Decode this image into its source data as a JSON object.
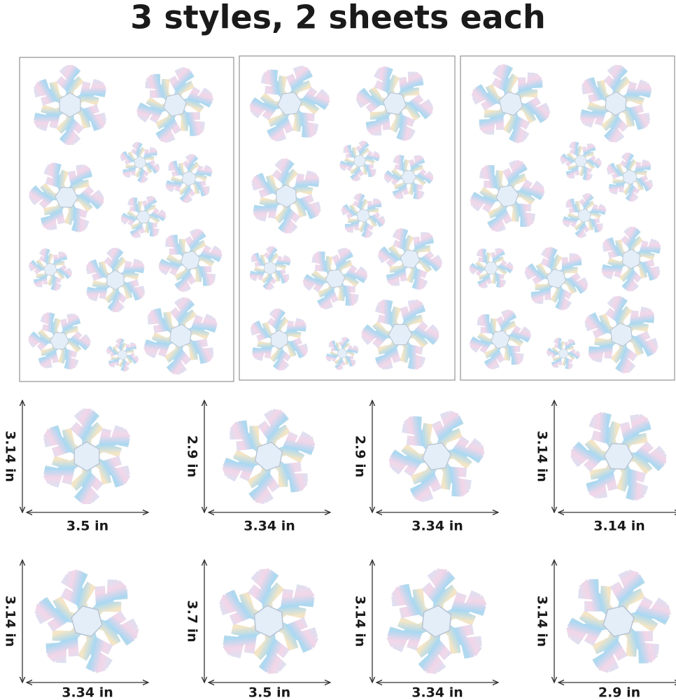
{
  "header": {
    "title": "3 styles, 2 sheets each"
  },
  "sizes": [
    {
      "height": "3.14 in",
      "width": "3.5 in"
    },
    {
      "height": "2.9 in",
      "width": "3.34 in"
    },
    {
      "height": "2.9 in",
      "width": "3.34 in"
    },
    {
      "height": "3.14 in",
      "width": "3.14 in"
    },
    {
      "height": "3.14 in",
      "width": "3.34 in"
    },
    {
      "height": "3.7 in",
      "width": "3.5 in"
    },
    {
      "height": "3.14 in",
      "width": "3.34 in"
    },
    {
      "height": "3.14 in",
      "width": "2.9 in"
    }
  ]
}
